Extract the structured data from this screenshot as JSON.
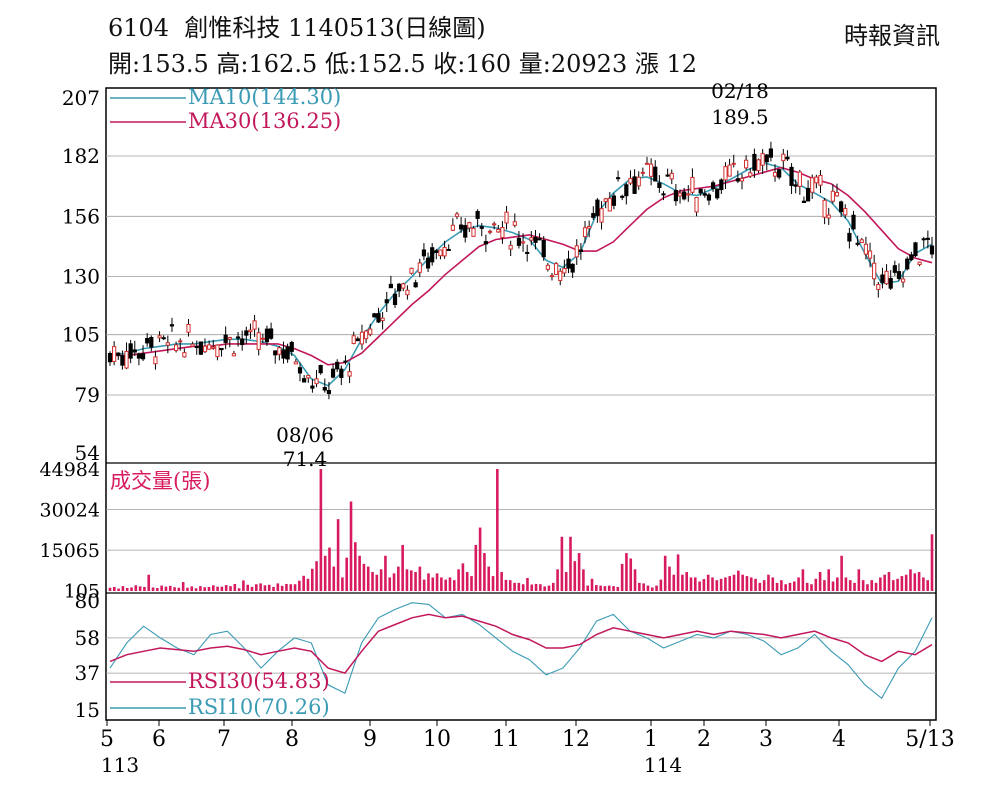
{
  "header": {
    "title": "6104  創惟科技 1140513(日線圖)",
    "stats": "開:153.5 高:162.5 低:152.5 收:160 量:20923 漲 12",
    "source": "時報資訊"
  },
  "colors": {
    "ma10": "#3a9bb5",
    "ma30": "#c2185b",
    "volume": "#d81b60",
    "rsi30": "#c2185b",
    "rsi10": "#3a9bb5",
    "grid": "#9e9e9e",
    "candle": "#000000",
    "up": "#d32f2f"
  },
  "chart_data": [
    {
      "type": "line",
      "panel": "price",
      "ylim": [
        54,
        207
      ],
      "y_ticks": [
        "207",
        "182",
        "156",
        "130",
        "105",
        "79",
        "54"
      ],
      "grid": true,
      "legend_position": "top-left",
      "series": [
        {
          "name": "MA10(144.30)",
          "values": [
            96,
            97,
            99,
            100,
            101,
            101,
            102,
            103,
            103,
            102,
            100,
            96,
            86,
            83,
            90,
            103,
            114,
            123,
            130,
            138,
            145,
            150,
            152,
            151,
            149,
            146,
            137,
            134,
            140,
            157,
            166,
            172,
            173,
            170,
            166,
            165,
            168,
            172,
            176,
            179,
            177,
            170,
            166,
            162,
            154,
            140,
            127,
            128,
            140,
            144
          ]
        },
        {
          "name": "MA30(136.25)",
          "values": [
            96,
            96,
            97,
            98,
            99,
            100,
            100,
            101,
            101,
            101,
            101,
            99,
            96,
            92,
            93,
            97,
            104,
            111,
            118,
            124,
            131,
            137,
            143,
            146,
            147,
            148,
            146,
            144,
            141,
            141,
            145,
            152,
            159,
            164,
            167,
            168,
            169,
            171,
            173,
            175,
            177,
            175,
            172,
            170,
            165,
            158,
            150,
            142,
            138,
            136
          ]
        }
      ],
      "x_labels": [
        "5",
        "6",
        "7",
        "8",
        "9",
        "10",
        "11",
        "12",
        "1",
        "2",
        "3",
        "4",
        "5/13"
      ],
      "x_sub_labels": [
        "113",
        "114"
      ],
      "annotations": [
        {
          "date": "02/18",
          "value": "189.5"
        },
        {
          "date": "08/06",
          "value": "71.4"
        }
      ]
    },
    {
      "type": "bar",
      "panel": "volume",
      "title": "成交量(張)",
      "y_ticks": [
        "44984",
        "30024",
        "15065",
        "105"
      ],
      "ylim": [
        0,
        45000
      ],
      "values": [
        1200,
        1500,
        900,
        1800,
        1100,
        1300,
        2100,
        1700,
        1500,
        6000,
        1300,
        1100,
        2000,
        1600,
        1900,
        1400,
        1200,
        3300,
        1200,
        1700,
        1000,
        1800,
        1400,
        1500,
        2100,
        1600,
        1600,
        2200,
        1800,
        2600,
        1000,
        3900,
        2300,
        1500,
        2500,
        2800,
        2100,
        2300,
        1500,
        2800,
        1900,
        2600,
        2500,
        2500,
        3800,
        5600,
        4500,
        8200,
        11000,
        44984,
        13000,
        16000,
        9000,
        26500,
        5000,
        12300,
        33000,
        18000,
        13000,
        10000,
        9000,
        7000,
        6000,
        8000,
        13000,
        5000,
        6500,
        9000,
        17000,
        8000,
        7600,
        7000,
        9000,
        4200,
        6500,
        5000,
        6500,
        5000,
        4200,
        5000,
        4000,
        8000,
        10200,
        7000,
        5500,
        17000,
        23400,
        14000,
        9000,
        5500,
        45000,
        7000,
        4100,
        4000,
        3000,
        3000,
        2500,
        4800,
        2400,
        2600,
        2500,
        1700,
        2000,
        3000,
        8000,
        20000,
        7000,
        20000,
        11000,
        14000,
        8000,
        2000,
        4500,
        2200,
        2000,
        1800,
        2000,
        1800,
        1500,
        10000,
        14000,
        12000,
        8000,
        3000,
        2800,
        2000,
        1300,
        2000,
        4200,
        13000,
        9000,
        6000,
        13500,
        6000,
        7000,
        5000,
        5000,
        3500,
        4400,
        6000,
        5000,
        4000,
        4500,
        5000,
        5500,
        6000,
        7500,
        6000,
        5500,
        5000,
        4500,
        3000,
        4000,
        6000,
        5000,
        3000,
        4000,
        2500,
        3000,
        3500,
        5000,
        8000,
        3000,
        2500,
        4500,
        7000,
        4000,
        8000,
        3500,
        5000,
        13000,
        5000,
        4000,
        3000,
        8000,
        4000,
        2500,
        4000,
        3000,
        5000,
        6000,
        7000,
        4000,
        4500,
        5500,
        6000,
        8000,
        6500,
        7000,
        5000,
        4000,
        20923
      ]
    },
    {
      "type": "line",
      "panel": "rsi",
      "ylim": [
        15,
        80
      ],
      "y_ticks": [
        "80",
        "58",
        "37",
        "15"
      ],
      "series": [
        {
          "name": "RSI30(54.83)",
          "values": [
            44,
            48,
            50,
            52,
            51,
            50,
            52,
            53,
            51,
            48,
            50,
            52,
            50,
            40,
            37,
            50,
            62,
            66,
            70,
            72,
            70,
            71,
            68,
            65,
            60,
            57,
            52,
            52,
            54,
            60,
            64,
            62,
            60,
            58,
            60,
            62,
            60,
            62,
            61,
            60,
            58,
            60,
            62,
            58,
            55,
            48,
            44,
            50,
            48,
            54
          ]
        },
        {
          "name": "RSI10(70.26)",
          "values": [
            40,
            55,
            65,
            58,
            52,
            48,
            60,
            62,
            52,
            40,
            50,
            58,
            55,
            30,
            25,
            55,
            70,
            75,
            79,
            78,
            70,
            72,
            66,
            58,
            50,
            45,
            36,
            40,
            52,
            68,
            72,
            62,
            58,
            52,
            56,
            60,
            58,
            62,
            60,
            56,
            48,
            52,
            60,
            50,
            42,
            30,
            22,
            40,
            50,
            70
          ]
        }
      ]
    }
  ]
}
